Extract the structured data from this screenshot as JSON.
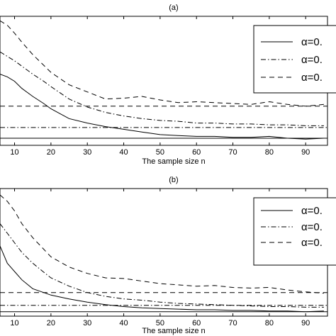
{
  "chart_data": [
    {
      "type": "line",
      "title": "(a)",
      "xlabel": "The sample size n",
      "ylabel": "",
      "xlim": [
        6,
        96
      ],
      "xticks": [
        10,
        20,
        30,
        40,
        50,
        60,
        70,
        80,
        90
      ],
      "tick_labels": [
        "10",
        "20",
        "30",
        "40",
        "50",
        "60",
        "70",
        "80",
        "90"
      ],
      "legend_position": "top-right",
      "legend": [
        "α=0.",
        "α=0.",
        "α=0."
      ],
      "series": [
        {
          "style": "solid",
          "x": [
            6,
            8,
            10,
            12,
            15,
            18,
            20,
            25,
            30,
            35,
            40,
            45,
            50,
            55,
            60,
            65,
            70,
            75,
            80,
            85,
            90,
            95
          ],
          "y": [
            0.8,
            0.77,
            0.72,
            0.64,
            0.55,
            0.47,
            0.41,
            0.3,
            0.25,
            0.21,
            0.18,
            0.15,
            0.12,
            0.11,
            0.1,
            0.1,
            0.09,
            0.09,
            0.1,
            0.08,
            0.07,
            0.08
          ]
        },
        {
          "style": "dashdot",
          "x": [
            6,
            8,
            10,
            12,
            15,
            18,
            20,
            25,
            30,
            35,
            40,
            45,
            50,
            55,
            60,
            65,
            70,
            75,
            80,
            85,
            90,
            95
          ],
          "y": [
            1.05,
            1.0,
            0.95,
            0.89,
            0.8,
            0.72,
            0.66,
            0.52,
            0.43,
            0.37,
            0.33,
            0.3,
            0.28,
            0.27,
            0.25,
            0.25,
            0.24,
            0.24,
            0.23,
            0.23,
            0.22,
            0.22
          ]
        },
        {
          "style": "dashed",
          "x": [
            6,
            8,
            10,
            12,
            15,
            18,
            20,
            25,
            30,
            35,
            40,
            45,
            50,
            55,
            60,
            65,
            70,
            75,
            80,
            85,
            90,
            95
          ],
          "y": [
            1.4,
            1.35,
            1.26,
            1.16,
            1.02,
            0.9,
            0.82,
            0.68,
            0.6,
            0.52,
            0.53,
            0.55,
            0.51,
            0.48,
            0.49,
            0.48,
            0.47,
            0.46,
            0.49,
            0.46,
            0.44,
            0.46
          ]
        }
      ],
      "reference_lines": [
        {
          "style": "dashed",
          "y": 0.44
        },
        {
          "style": "dashdot",
          "y": 0.2
        },
        {
          "style": "solid",
          "y": 0.08
        }
      ],
      "ylim": [
        0,
        1.45
      ]
    },
    {
      "type": "line",
      "title": "(b)",
      "xlabel": "The sample size n",
      "ylabel": "",
      "xlim": [
        6,
        96
      ],
      "xticks": [
        10,
        20,
        30,
        40,
        50,
        60,
        70,
        80,
        90
      ],
      "tick_labels": [
        "10",
        "20",
        "30",
        "40",
        "50",
        "60",
        "70",
        "80",
        "90"
      ],
      "legend_position": "top-right",
      "legend": [
        "α=0.",
        "α=0.",
        "α=0."
      ],
      "series": [
        {
          "style": "solid",
          "x": [
            6,
            8,
            10,
            12,
            15,
            18,
            20,
            25,
            30,
            35,
            40,
            45,
            50,
            55,
            60,
            65,
            70,
            75,
            80,
            85,
            90,
            95
          ],
          "y": [
            1.05,
            0.78,
            0.65,
            0.52,
            0.38,
            0.32,
            0.28,
            0.22,
            0.17,
            0.13,
            0.1,
            0.08,
            0.07,
            0.06,
            0.05,
            0.05,
            0.04,
            0.04,
            0.03,
            0.03,
            0.02,
            0.03
          ]
        },
        {
          "style": "dashdot",
          "x": [
            6,
            8,
            10,
            12,
            15,
            18,
            20,
            25,
            30,
            35,
            40,
            45,
            50,
            55,
            60,
            65,
            70,
            75,
            80,
            85,
            90,
            95
          ],
          "y": [
            1.4,
            1.25,
            1.1,
            0.95,
            0.78,
            0.64,
            0.55,
            0.42,
            0.32,
            0.26,
            0.22,
            0.2,
            0.17,
            0.15,
            0.14,
            0.13,
            0.12,
            0.11,
            0.1,
            0.1,
            0.09,
            0.09
          ]
        },
        {
          "style": "dashed",
          "x": [
            6,
            8,
            10,
            12,
            15,
            18,
            20,
            25,
            30,
            35,
            40,
            45,
            50,
            55,
            60,
            65,
            70,
            75,
            80,
            85,
            90,
            95
          ],
          "y": [
            1.85,
            1.75,
            1.6,
            1.4,
            1.18,
            1.0,
            0.88,
            0.72,
            0.62,
            0.55,
            0.54,
            0.5,
            0.46,
            0.44,
            0.42,
            0.43,
            0.4,
            0.39,
            0.4,
            0.36,
            0.33,
            0.31
          ]
        }
      ],
      "reference_lines": [
        {
          "style": "dashed",
          "y": 0.32
        },
        {
          "style": "dashdot",
          "y": 0.12
        },
        {
          "style": "solid",
          "y": 0.02
        }
      ],
      "ylim": [
        -0.05,
        1.95
      ]
    }
  ]
}
